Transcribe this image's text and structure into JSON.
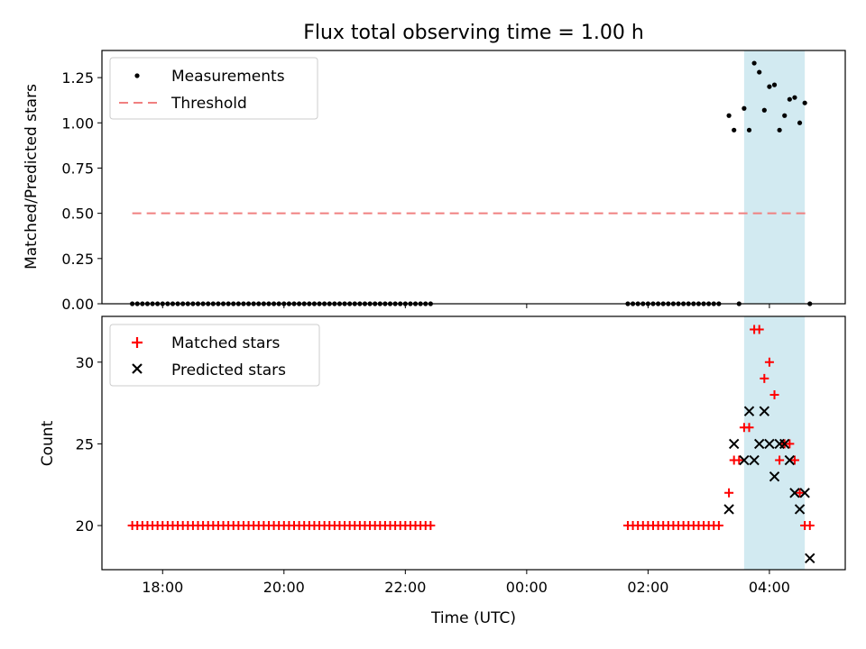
{
  "title": "Flux total observing time = 1.00 h",
  "chart_data": [
    {
      "type": "scatter",
      "panel": "top",
      "ylabel": "Matched/Predicted stars",
      "ylim": [
        0,
        1.4
      ],
      "yticks": [
        0.0,
        0.25,
        0.5,
        0.75,
        1.0,
        1.25
      ],
      "ytick_labels": [
        "0.00",
        "0.25",
        "0.50",
        "0.75",
        "1.00",
        "1.25"
      ],
      "legend": {
        "placement": "top-left",
        "entries": [
          "Measurements",
          "Threshold"
        ]
      },
      "threshold": {
        "name": "Threshold",
        "value": 0.5,
        "x_range": [
          "17:30",
          "04:40"
        ],
        "color": "#f08080",
        "style": "dashed"
      },
      "series": [
        {
          "name": "Measurements",
          "color": "#000000",
          "marker": "dot",
          "x": [
            "17:30",
            "17:35",
            "17:40",
            "17:45",
            "17:50",
            "17:55",
            "18:00",
            "18:05",
            "18:10",
            "18:15",
            "18:20",
            "18:25",
            "18:30",
            "18:35",
            "18:40",
            "18:45",
            "18:50",
            "18:55",
            "19:00",
            "19:05",
            "19:10",
            "19:15",
            "19:20",
            "19:25",
            "19:30",
            "19:35",
            "19:40",
            "19:45",
            "19:50",
            "19:55",
            "20:00",
            "20:05",
            "20:10",
            "20:15",
            "20:20",
            "20:25",
            "20:30",
            "20:35",
            "20:40",
            "20:45",
            "20:50",
            "20:55",
            "21:00",
            "21:05",
            "21:10",
            "21:15",
            "21:20",
            "21:25",
            "21:30",
            "21:35",
            "21:40",
            "21:45",
            "21:50",
            "21:55",
            "22:00",
            "22:05",
            "22:10",
            "22:15",
            "22:20",
            "22:25",
            "01:40",
            "01:45",
            "01:50",
            "01:55",
            "02:00",
            "02:05",
            "02:10",
            "02:15",
            "02:20",
            "02:25",
            "02:30",
            "02:35",
            "02:40",
            "02:45",
            "02:50",
            "02:55",
            "03:00",
            "03:05",
            "03:10",
            "03:20",
            "03:25",
            "03:30",
            "03:35",
            "03:40",
            "03:45",
            "03:50",
            "03:55",
            "04:00",
            "04:05",
            "04:10",
            "04:15",
            "04:20",
            "04:25",
            "04:30",
            "04:35",
            "04:40"
          ],
          "y": [
            0,
            0,
            0,
            0,
            0,
            0,
            0,
            0,
            0,
            0,
            0,
            0,
            0,
            0,
            0,
            0,
            0,
            0,
            0,
            0,
            0,
            0,
            0,
            0,
            0,
            0,
            0,
            0,
            0,
            0,
            0,
            0,
            0,
            0,
            0,
            0,
            0,
            0,
            0,
            0,
            0,
            0,
            0,
            0,
            0,
            0,
            0,
            0,
            0,
            0,
            0,
            0,
            0,
            0,
            0,
            0,
            0,
            0,
            0,
            0,
            0,
            0,
            0,
            0,
            0,
            0,
            0,
            0,
            0,
            0,
            0,
            0,
            0,
            0,
            0,
            0,
            0,
            0,
            0,
            1.04,
            0.96,
            0,
            1.08,
            0.96,
            1.33,
            1.28,
            1.07,
            1.2,
            1.21,
            0.96,
            1.04,
            1.13,
            1.14,
            1.0,
            1.11,
            0
          ]
        }
      ]
    },
    {
      "type": "scatter",
      "panel": "bottom",
      "xlabel": "Time (UTC)",
      "ylabel": "Count",
      "ylim": [
        17.3,
        32.8
      ],
      "yticks": [
        20,
        25,
        30
      ],
      "ytick_labels": [
        "20",
        "25",
        "30"
      ],
      "xlim": [
        "17:00",
        "05:15"
      ],
      "xticks": [
        "18:00",
        "20:00",
        "22:00",
        "00:00",
        "02:00",
        "04:00"
      ],
      "legend": {
        "placement": "top-left",
        "entries": [
          "Matched stars",
          "Predicted stars"
        ]
      },
      "series": [
        {
          "name": "Matched stars",
          "color": "#ff0000",
          "marker": "plus",
          "x": [
            "17:30",
            "17:35",
            "17:40",
            "17:45",
            "17:50",
            "17:55",
            "18:00",
            "18:05",
            "18:10",
            "18:15",
            "18:20",
            "18:25",
            "18:30",
            "18:35",
            "18:40",
            "18:45",
            "18:50",
            "18:55",
            "19:00",
            "19:05",
            "19:10",
            "19:15",
            "19:20",
            "19:25",
            "19:30",
            "19:35",
            "19:40",
            "19:45",
            "19:50",
            "19:55",
            "20:00",
            "20:05",
            "20:10",
            "20:15",
            "20:20",
            "20:25",
            "20:30",
            "20:35",
            "20:40",
            "20:45",
            "20:50",
            "20:55",
            "21:00",
            "21:05",
            "21:10",
            "21:15",
            "21:20",
            "21:25",
            "21:30",
            "21:35",
            "21:40",
            "21:45",
            "21:50",
            "21:55",
            "22:00",
            "22:05",
            "22:10",
            "22:15",
            "22:20",
            "22:25",
            "01:40",
            "01:45",
            "01:50",
            "01:55",
            "02:00",
            "02:05",
            "02:10",
            "02:15",
            "02:20",
            "02:25",
            "02:30",
            "02:35",
            "02:40",
            "02:45",
            "02:50",
            "02:55",
            "03:00",
            "03:05",
            "03:10",
            "03:20",
            "03:25",
            "03:30",
            "03:35",
            "03:40",
            "03:45",
            "03:50",
            "03:55",
            "04:00",
            "04:05",
            "04:10",
            "04:15",
            "04:20",
            "04:25",
            "04:30",
            "04:35",
            "04:40"
          ],
          "y": [
            20,
            20,
            20,
            20,
            20,
            20,
            20,
            20,
            20,
            20,
            20,
            20,
            20,
            20,
            20,
            20,
            20,
            20,
            20,
            20,
            20,
            20,
            20,
            20,
            20,
            20,
            20,
            20,
            20,
            20,
            20,
            20,
            20,
            20,
            20,
            20,
            20,
            20,
            20,
            20,
            20,
            20,
            20,
            20,
            20,
            20,
            20,
            20,
            20,
            20,
            20,
            20,
            20,
            20,
            20,
            20,
            20,
            20,
            20,
            20,
            20,
            20,
            20,
            20,
            20,
            20,
            20,
            20,
            20,
            20,
            20,
            20,
            20,
            20,
            20,
            20,
            20,
            20,
            20,
            22,
            24,
            24,
            26,
            26,
            32,
            32,
            29,
            30,
            28,
            24,
            25,
            25,
            24,
            22,
            20,
            20
          ]
        },
        {
          "name": "Predicted stars",
          "color": "#000000",
          "marker": "x",
          "x": [
            "03:20",
            "03:25",
            "03:35",
            "03:40",
            "03:45",
            "03:50",
            "03:55",
            "04:00",
            "04:05",
            "04:10",
            "04:15",
            "04:20",
            "04:25",
            "04:30",
            "04:35",
            "04:40"
          ],
          "y": [
            21,
            25,
            24,
            27,
            24,
            25,
            27,
            25,
            23,
            25,
            25,
            24,
            22,
            21,
            22,
            18
          ]
        }
      ],
      "highlight_span": {
        "x_range": [
          "03:35",
          "04:35"
        ],
        "color": "#add8e6"
      }
    }
  ]
}
